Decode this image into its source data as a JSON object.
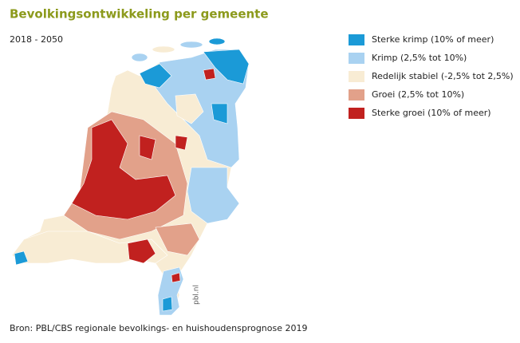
{
  "header": {
    "title": "Bevolkingsontwikkeling per gemeente",
    "subtitle": "2018 - 2050"
  },
  "legend": {
    "items": [
      {
        "label": "Sterke krimp (10% of meer)",
        "color": "#1b9ad7"
      },
      {
        "label": "Krimp (2,5% tot 10%)",
        "color": "#a9d2f1"
      },
      {
        "label": "Redelijk stabiel (-2,5% tot 2,5%)",
        "color": "#f8ecd4"
      },
      {
        "label": "Groei (2,5% tot 10%)",
        "color": "#e2a18a"
      },
      {
        "label": "Sterke groei (10% of meer)",
        "color": "#c1211f"
      }
    ]
  },
  "watermark": "pbl.nl",
  "source": "Bron: PBL/CBS regionale bevolkings- en huishoudensprognose 2019"
}
